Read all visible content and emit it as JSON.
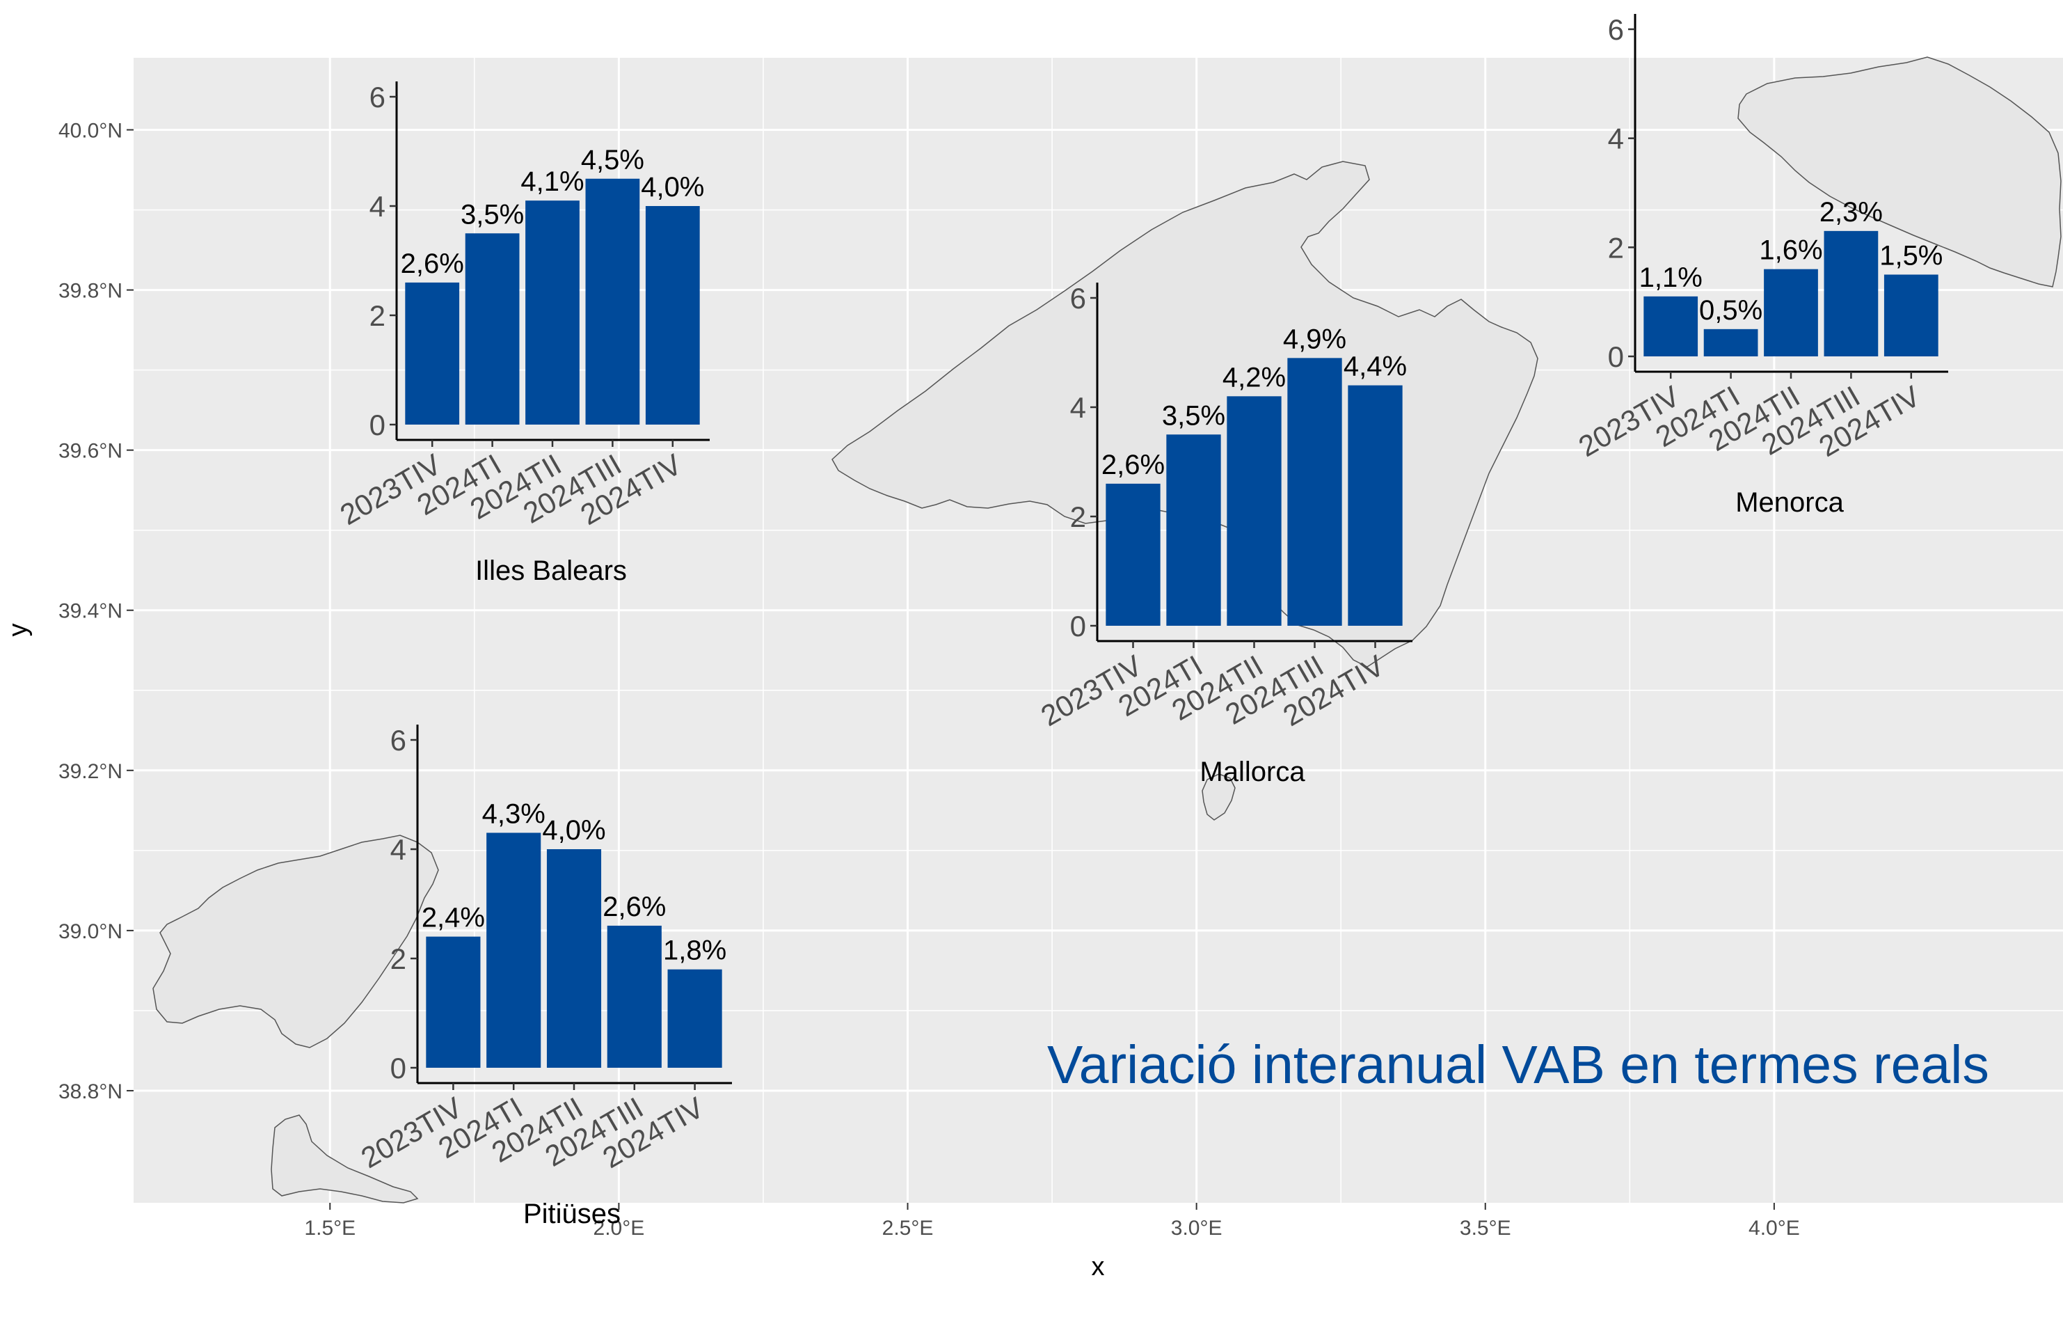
{
  "figure": {
    "title": "Variació interanual VAB en termes reals",
    "xlabel": "x",
    "ylabel": "y"
  },
  "colors": {
    "panel": "#ebebeb",
    "grid": "#ffffff",
    "land": "#e6e6e6",
    "coast": "#555555",
    "bar": "#004a9a",
    "title": "#004a9a"
  },
  "chart_data": [
    {
      "type": "map",
      "name": "base-map",
      "x_ticks": [
        1.5,
        2.0,
        2.5,
        3.0,
        3.5,
        4.0
      ],
      "x_tick_labels": [
        "1.5°E",
        "2.0°E",
        "2.5°E",
        "3.0°E",
        "3.5°E",
        "4.0°E"
      ],
      "y_ticks": [
        38.8,
        39.0,
        39.2,
        39.4,
        39.6,
        39.8,
        40.0
      ],
      "y_tick_labels": [
        "38.8°N",
        "39.0°N",
        "39.2°N",
        "39.4°N",
        "39.6°N",
        "39.8°N",
        "40.0°N"
      ],
      "xlim": [
        1.16,
        4.5
      ],
      "ylim": [
        38.66,
        40.09
      ],
      "grid": true
    },
    {
      "type": "bar",
      "name": "illes-balears",
      "caption": "Illes Balears",
      "categories": [
        "2023TIV",
        "2024TI",
        "2024TII",
        "2024TIII",
        "2024TIV"
      ],
      "values": [
        2.6,
        3.5,
        4.1,
        4.5,
        4.0
      ],
      "labels": [
        "2,6%",
        "3,5%",
        "4,1%",
        "4,5%",
        "4,0%"
      ],
      "ylim": [
        0,
        6
      ],
      "y_ticks": [
        0,
        2,
        4,
        6
      ]
    },
    {
      "type": "bar",
      "name": "mallorca",
      "caption": "Mallorca",
      "categories": [
        "2023TIV",
        "2024TI",
        "2024TII",
        "2024TIII",
        "2024TIV"
      ],
      "values": [
        2.6,
        3.5,
        4.2,
        4.9,
        4.4
      ],
      "labels": [
        "2,6%",
        "3,5%",
        "4,2%",
        "4,9%",
        "4,4%"
      ],
      "ylim": [
        0,
        6
      ],
      "y_ticks": [
        0,
        2,
        4,
        6
      ]
    },
    {
      "type": "bar",
      "name": "menorca",
      "caption": "Menorca",
      "categories": [
        "2023TIV",
        "2024TI",
        "2024TII",
        "2024TIII",
        "2024TIV"
      ],
      "values": [
        1.1,
        0.5,
        1.6,
        2.3,
        1.5
      ],
      "labels": [
        "1,1%",
        "0,5%",
        "1,6%",
        "2,3%",
        "1,5%"
      ],
      "ylim": [
        0,
        6
      ],
      "y_ticks": [
        0,
        2,
        4,
        6
      ]
    },
    {
      "type": "bar",
      "name": "pitiuses",
      "caption": "Pitiüses",
      "categories": [
        "2023TIV",
        "2024TI",
        "2024TII",
        "2024TIII",
        "2024TIV"
      ],
      "values": [
        2.4,
        4.3,
        4.0,
        2.6,
        1.8
      ],
      "labels": [
        "2,4%",
        "4,3%",
        "4,0%",
        "2,6%",
        "1,8%"
      ],
      "ylim": [
        0,
        6
      ],
      "y_ticks": [
        0,
        2,
        4,
        6
      ]
    }
  ]
}
